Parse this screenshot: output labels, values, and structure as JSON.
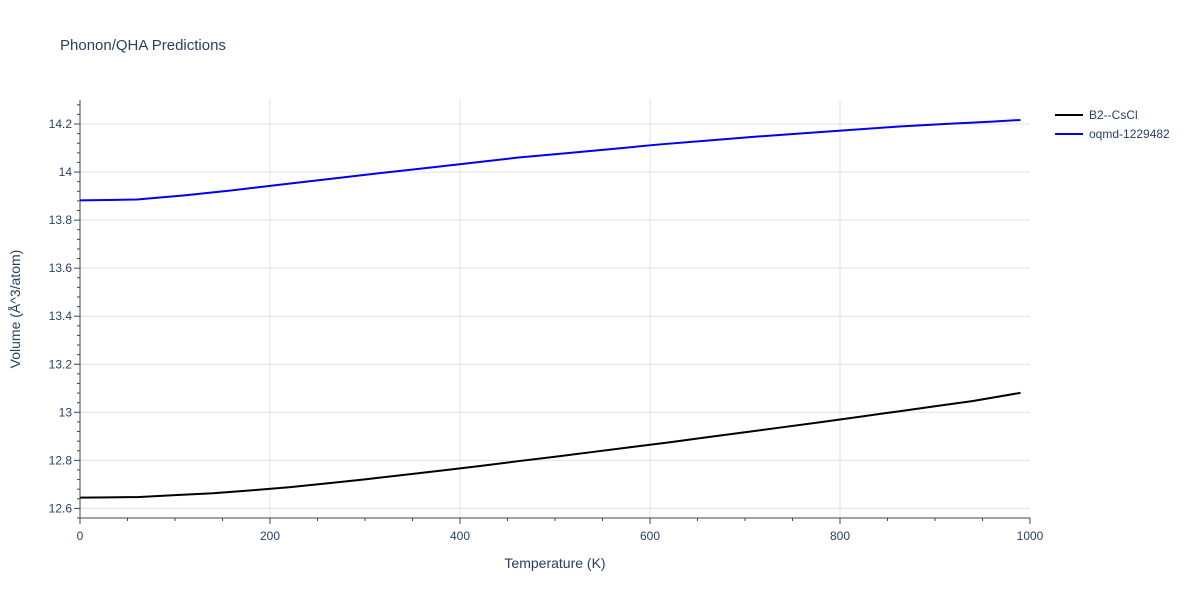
{
  "chart_data": {
    "type": "line",
    "title": "Phonon/QHA Predictions",
    "xlabel": "Temperature (K)",
    "ylabel": "Volume (Å^3/atom)",
    "xlim": [
      0,
      1000
    ],
    "ylim": [
      12.56,
      14.3
    ],
    "x_ticks": [
      0,
      200,
      400,
      600,
      800,
      1000
    ],
    "x_tick_labels": [
      "0",
      "200",
      "400",
      "600",
      "800",
      "1000"
    ],
    "y_ticks": [
      12.6,
      12.8,
      13.0,
      13.2,
      13.4,
      13.6,
      13.8,
      14.0,
      14.2
    ],
    "y_tick_labels": [
      "12.6",
      "12.8",
      "13",
      "13.2",
      "13.4",
      "13.6",
      "13.8",
      "14",
      "14.2"
    ],
    "grid": true,
    "legend_position": "top-right",
    "series": [
      {
        "name": "B2--CsCl",
        "color": "#000000",
        "x": [
          0,
          30,
          60,
          100,
          140,
          180,
          220,
          260,
          300,
          340,
          380,
          420,
          460,
          500,
          540,
          580,
          620,
          660,
          700,
          740,
          780,
          820,
          860,
          900,
          940,
          990
        ],
        "y": [
          12.645,
          12.646,
          12.647,
          12.655,
          12.663,
          12.675,
          12.688,
          12.704,
          12.721,
          12.739,
          12.757,
          12.776,
          12.796,
          12.815,
          12.835,
          12.855,
          12.875,
          12.896,
          12.917,
          12.938,
          12.959,
          12.981,
          13.003,
          13.025,
          13.047,
          13.081
        ]
      },
      {
        "name": "oqmd-1229482",
        "color": "#0000ee",
        "x": [
          0,
          30,
          60,
          110,
          160,
          210,
          260,
          310,
          360,
          410,
          460,
          510,
          560,
          610,
          660,
          710,
          760,
          810,
          860,
          910,
          960,
          990
        ],
        "y": [
          13.882,
          13.884,
          13.886,
          13.903,
          13.924,
          13.947,
          13.97,
          13.993,
          14.015,
          14.037,
          14.06,
          14.078,
          14.096,
          14.115,
          14.131,
          14.147,
          14.161,
          14.175,
          14.189,
          14.2,
          14.21,
          14.217
        ]
      }
    ]
  }
}
